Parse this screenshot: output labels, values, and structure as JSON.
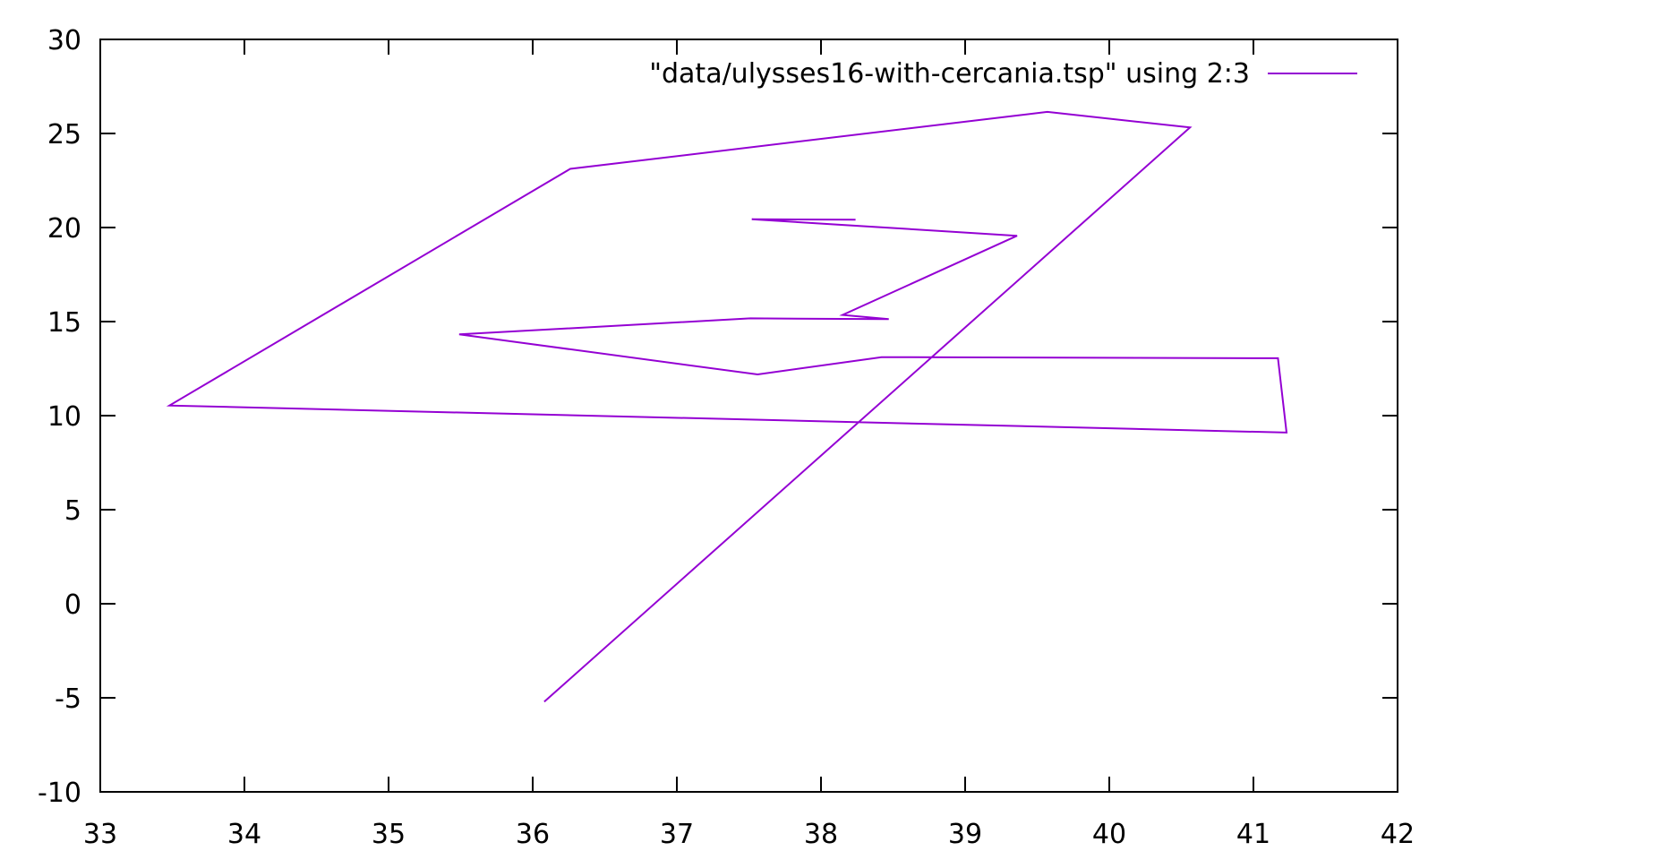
{
  "chart_data": {
    "type": "line",
    "title": "",
    "xlabel": "",
    "ylabel": "",
    "xlim": [
      33,
      42
    ],
    "ylim": [
      -10,
      30
    ],
    "x_ticks": [
      "33",
      "34",
      "35",
      "36",
      "37",
      "38",
      "39",
      "40",
      "41",
      "42"
    ],
    "y_ticks": [
      "-10",
      "-5",
      "0",
      "5",
      "10",
      "15",
      "20",
      "25",
      "30"
    ],
    "grid": false,
    "legend_position": "top-right",
    "series_color": "#9400d3",
    "series": [
      {
        "name": "\"data/ulysses16-with-cercania.tsp\" using 2:3",
        "x": [
          38.24,
          37.52,
          39.36,
          38.15,
          38.47,
          37.51,
          35.49,
          37.56,
          38.42,
          41.17,
          41.23,
          33.48,
          36.26,
          39.57,
          40.56,
          36.08
        ],
        "y": [
          20.42,
          20.44,
          19.56,
          15.35,
          15.13,
          15.17,
          14.32,
          12.19,
          13.11,
          13.05,
          9.1,
          10.54,
          23.12,
          26.15,
          25.32,
          -5.21
        ]
      }
    ]
  }
}
